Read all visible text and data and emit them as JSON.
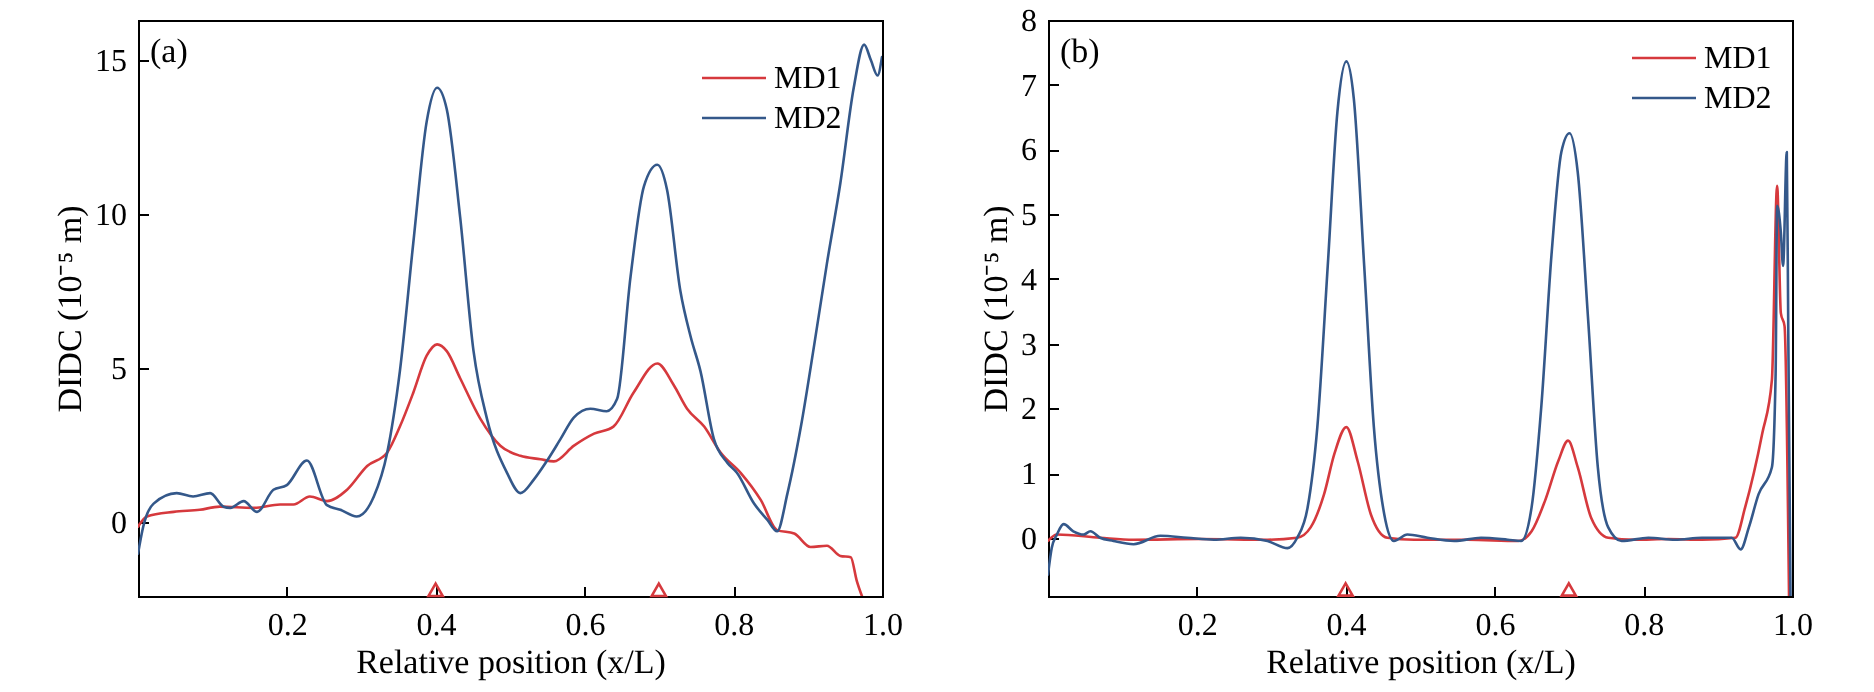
{
  "chart_data": [
    {
      "type": "line",
      "title": "(a)",
      "xlabel": "Relative position (x/L)",
      "ylabel": "DIDC (10⁻⁵ m)",
      "xlim": [
        0,
        1
      ],
      "ylim": [
        -2.4,
        16.3
      ],
      "xticks": [
        0.2,
        0.4,
        0.6,
        0.8,
        {
          "value": 1,
          "label": "1.0"
        }
      ],
      "yticks": [
        0,
        5,
        10,
        15
      ],
      "legend": "top right",
      "series": [
        {
          "name": "MD1",
          "color": "#d6393d",
          "x": [
            0,
            0.012,
            0.048,
            0.083,
            0.11,
            0.155,
            0.191,
            0.209,
            0.231,
            0.254,
            0.281,
            0.308,
            0.335,
            0.352,
            0.37,
            0.388,
            0.402,
            0.415,
            0.433,
            0.46,
            0.487,
            0.514,
            0.541,
            0.559,
            0.586,
            0.613,
            0.639,
            0.666,
            0.698,
            0.72,
            0.738,
            0.761,
            0.783,
            0.81,
            0.837,
            0.859,
            0.882,
            0.904,
            0.926,
            0.944,
            0.958,
            0.966,
            0.973
          ],
          "values": [
            -0.15,
            0.18,
            0.33,
            0.4,
            0.5,
            0.46,
            0.57,
            0.57,
            0.83,
            0.68,
            1.05,
            1.82,
            2.26,
            3.1,
            4.2,
            5.4,
            5.77,
            5.55,
            4.67,
            3.36,
            2.48,
            2.15,
            2.04,
            1.97,
            2.48,
            2.87,
            3.1,
            4.2,
            5.15,
            4.45,
            3.68,
            3.1,
            2.26,
            1.6,
            0.72,
            -0.26,
            -0.37,
            -0.81,
            -0.77,
            -1.1,
            -1.14,
            -1.9,
            -2.4
          ]
        },
        {
          "name": "MD2",
          "color": "#34588a",
          "x": [
            0,
            0.007,
            0.021,
            0.052,
            0.074,
            0.097,
            0.115,
            0.124,
            0.142,
            0.16,
            0.182,
            0.2,
            0.227,
            0.254,
            0.272,
            0.294,
            0.317,
            0.335,
            0.352,
            0.37,
            0.388,
            0.402,
            0.415,
            0.433,
            0.451,
            0.469,
            0.496,
            0.514,
            0.532,
            0.55,
            0.568,
            0.586,
            0.608,
            0.63,
            0.644,
            0.662,
            0.68,
            0.698,
            0.711,
            0.729,
            0.743,
            0.756,
            0.774,
            0.792,
            0.805,
            0.828,
            0.846,
            0.859,
            0.873,
            0.891,
            0.909,
            0.926,
            0.944,
            0.962,
            0.976,
            0.985,
            0.994,
            1.0
          ],
          "values": [
            -1.03,
            -0.15,
            0.6,
            0.94,
            0.83,
            0.94,
            0.5,
            0.46,
            0.68,
            0.33,
            1.05,
            1.2,
            2.0,
            0.55,
            0.4,
            0.18,
            0.83,
            2.26,
            4.9,
            9.06,
            13.0,
            14.1,
            13.4,
            9.9,
            5.55,
            3.36,
            1.6,
            0.94,
            1.38,
            2.0,
            2.7,
            3.4,
            3.68,
            3.6,
            4.0,
            7.96,
            10.9,
            11.6,
            10.8,
            7.5,
            6.0,
            4.9,
            2.7,
            1.93,
            1.6,
            0.6,
            0.07,
            -0.3,
            0.94,
            3.1,
            5.77,
            8.4,
            11.0,
            14.1,
            15.5,
            15.0,
            14.5,
            15.1
          ]
        },
        {
          "type": "scatter",
          "marker": "triangle",
          "color": "#d6393d",
          "x": [
            0.4,
            0.7
          ],
          "values": [
            -2.2,
            -2.2
          ]
        }
      ]
    },
    {
      "type": "line",
      "title": "(b)",
      "xlabel": "Relative position (x/L)",
      "ylabel": "DIDC (10⁻⁵ m)",
      "xlim": [
        0,
        1
      ],
      "ylim": [
        -0.9,
        8
      ],
      "xticks": [
        0.2,
        0.4,
        0.6,
        0.8,
        {
          "value": 1,
          "label": "1.0"
        }
      ],
      "yticks": [
        0,
        1,
        2,
        3,
        4,
        5,
        6,
        7,
        8
      ],
      "legend": "top right",
      "series": [
        {
          "name": "MD1",
          "color": "#d6393d",
          "x": [
            0,
            0.012,
            0.07,
            0.115,
            0.205,
            0.295,
            0.335,
            0.353,
            0.371,
            0.385,
            0.401,
            0.416,
            0.434,
            0.456,
            0.492,
            0.564,
            0.632,
            0.65,
            0.668,
            0.686,
            0.699,
            0.712,
            0.73,
            0.753,
            0.789,
            0.834,
            0.879,
            0.924,
            0.937,
            0.96,
            0.973,
            0.98,
            0.985,
            0.99,
            0.996
          ],
          "values": [
            -0.05,
            0.05,
            0,
            -0.03,
            -0.02,
            -0.03,
            0,
            0.16,
            0.67,
            1.3,
            1.71,
            1.19,
            0.36,
            0,
            -0.03,
            -0.03,
            -0.05,
            0.1,
            0.57,
            1.19,
            1.5,
            1.09,
            0.31,
            0,
            -0.03,
            -0.02,
            -0.03,
            0,
            0.47,
            1.61,
            2.44,
            5.44,
            3.47,
            3.27,
            -0.9
          ]
        },
        {
          "name": "MD2",
          "color": "#34588a",
          "x": [
            0,
            0.005,
            0.012,
            0.021,
            0.034,
            0.048,
            0.057,
            0.07,
            0.088,
            0.115,
            0.151,
            0.187,
            0.223,
            0.259,
            0.295,
            0.322,
            0.335,
            0.349,
            0.362,
            0.376,
            0.389,
            0.401,
            0.411,
            0.425,
            0.438,
            0.452,
            0.465,
            0.483,
            0.51,
            0.546,
            0.582,
            0.618,
            0.636,
            0.65,
            0.663,
            0.677,
            0.69,
            0.701,
            0.712,
            0.726,
            0.739,
            0.753,
            0.771,
            0.807,
            0.843,
            0.879,
            0.919,
            0.931,
            0.942,
            0.955,
            0.973,
            0.978,
            0.98,
            0.985,
            0.988,
            0.993,
            0.995,
            0.998
          ],
          "values": [
            -0.57,
            -0.16,
            0.05,
            0.21,
            0.1,
            0.05,
            0.1,
            0,
            -0.05,
            -0.1,
            0.03,
            0,
            -0.03,
            0,
            -0.05,
            -0.16,
            0,
            0.47,
            1.71,
            4.2,
            6.58,
            7.36,
            6.79,
            4.2,
            1.71,
            0.36,
            -0.05,
            0.05,
            0,
            -0.05,
            0,
            -0.03,
            -0.05,
            0.47,
            2.02,
            4.41,
            5.96,
            6.25,
            5.65,
            3.37,
            1.09,
            0.16,
            -0.05,
            0,
            -0.03,
            0,
            0,
            -0.18,
            0.16,
            0.67,
            1.09,
            2.54,
            5.13,
            4.72,
            4.2,
            5.96,
            3.16,
            -0.9
          ]
        },
        {
          "type": "scatter",
          "marker": "triangle",
          "color": "#d6393d",
          "x": [
            0.4,
            0.7
          ],
          "values": [
            -0.8,
            -0.8
          ]
        }
      ]
    }
  ]
}
